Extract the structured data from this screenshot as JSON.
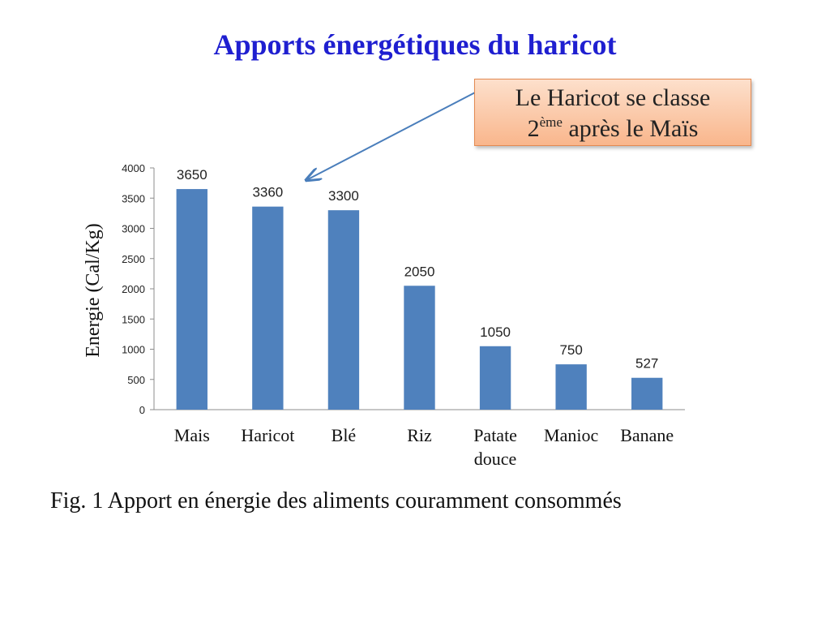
{
  "slide": {
    "title": "Apports énergétiques du haricot",
    "callout": {
      "line1": "Le Haricot se classe",
      "line2_pre": "2",
      "line2_sup": "ème",
      "line2_post": " après le Maïs"
    },
    "caption": "Fig. 1 Apport en énergie des aliments couramment consommés"
  },
  "chart_data": {
    "type": "bar",
    "title": "",
    "xlabel": "",
    "ylabel": "Energie  (Cal/Kg)",
    "categories": [
      "Mais",
      "Haricot",
      "Blé",
      "Riz",
      "Patate douce",
      "Manioc",
      "Banane"
    ],
    "category_lines": [
      [
        "Mais"
      ],
      [
        "Haricot"
      ],
      [
        "Blé"
      ],
      [
        "Riz"
      ],
      [
        "Patate",
        "douce"
      ],
      [
        "Manioc"
      ],
      [
        "Banane"
      ]
    ],
    "values": [
      3650,
      3360,
      3300,
      2050,
      1050,
      750,
      527
    ],
    "ylim": [
      0,
      4000
    ],
    "yticks": [
      0,
      500,
      1000,
      1500,
      2000,
      2500,
      3000,
      3500,
      4000
    ],
    "bar_color": "#4f81bd",
    "grid": false,
    "legend": "none",
    "data_labels": true
  },
  "colors": {
    "title": "#1f1fd0",
    "callout_fill": "#f9b68c",
    "arrow": "#4a7ebb"
  }
}
